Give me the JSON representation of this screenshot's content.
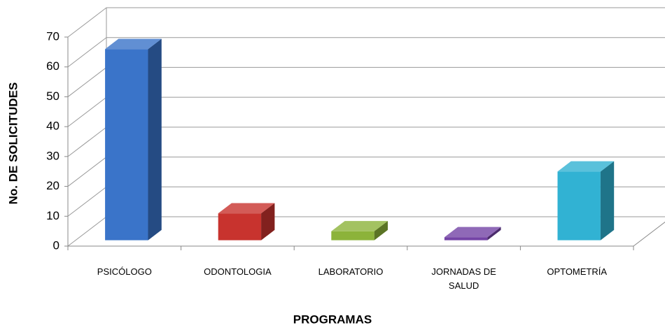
{
  "chart_data": {
    "type": "bar3d",
    "y_label": "No. DE SOLICITUDES",
    "x_label": "PROGRAMAS",
    "categories": [
      "PSICÓLOGO",
      "ODONTOLOGIA",
      "LABORATORIO",
      "JORNADAS DE SALUD",
      "OPTOMETRÍA"
    ],
    "values": [
      64,
      9,
      3,
      1,
      23
    ],
    "colors": [
      "#3a74c9",
      "#c8332e",
      "#8cb33a",
      "#7444a6",
      "#31b2d3"
    ],
    "ylim": [
      0,
      70
    ],
    "yticks": [
      0,
      10,
      20,
      30,
      40,
      50,
      60,
      70
    ],
    "grid": true
  }
}
